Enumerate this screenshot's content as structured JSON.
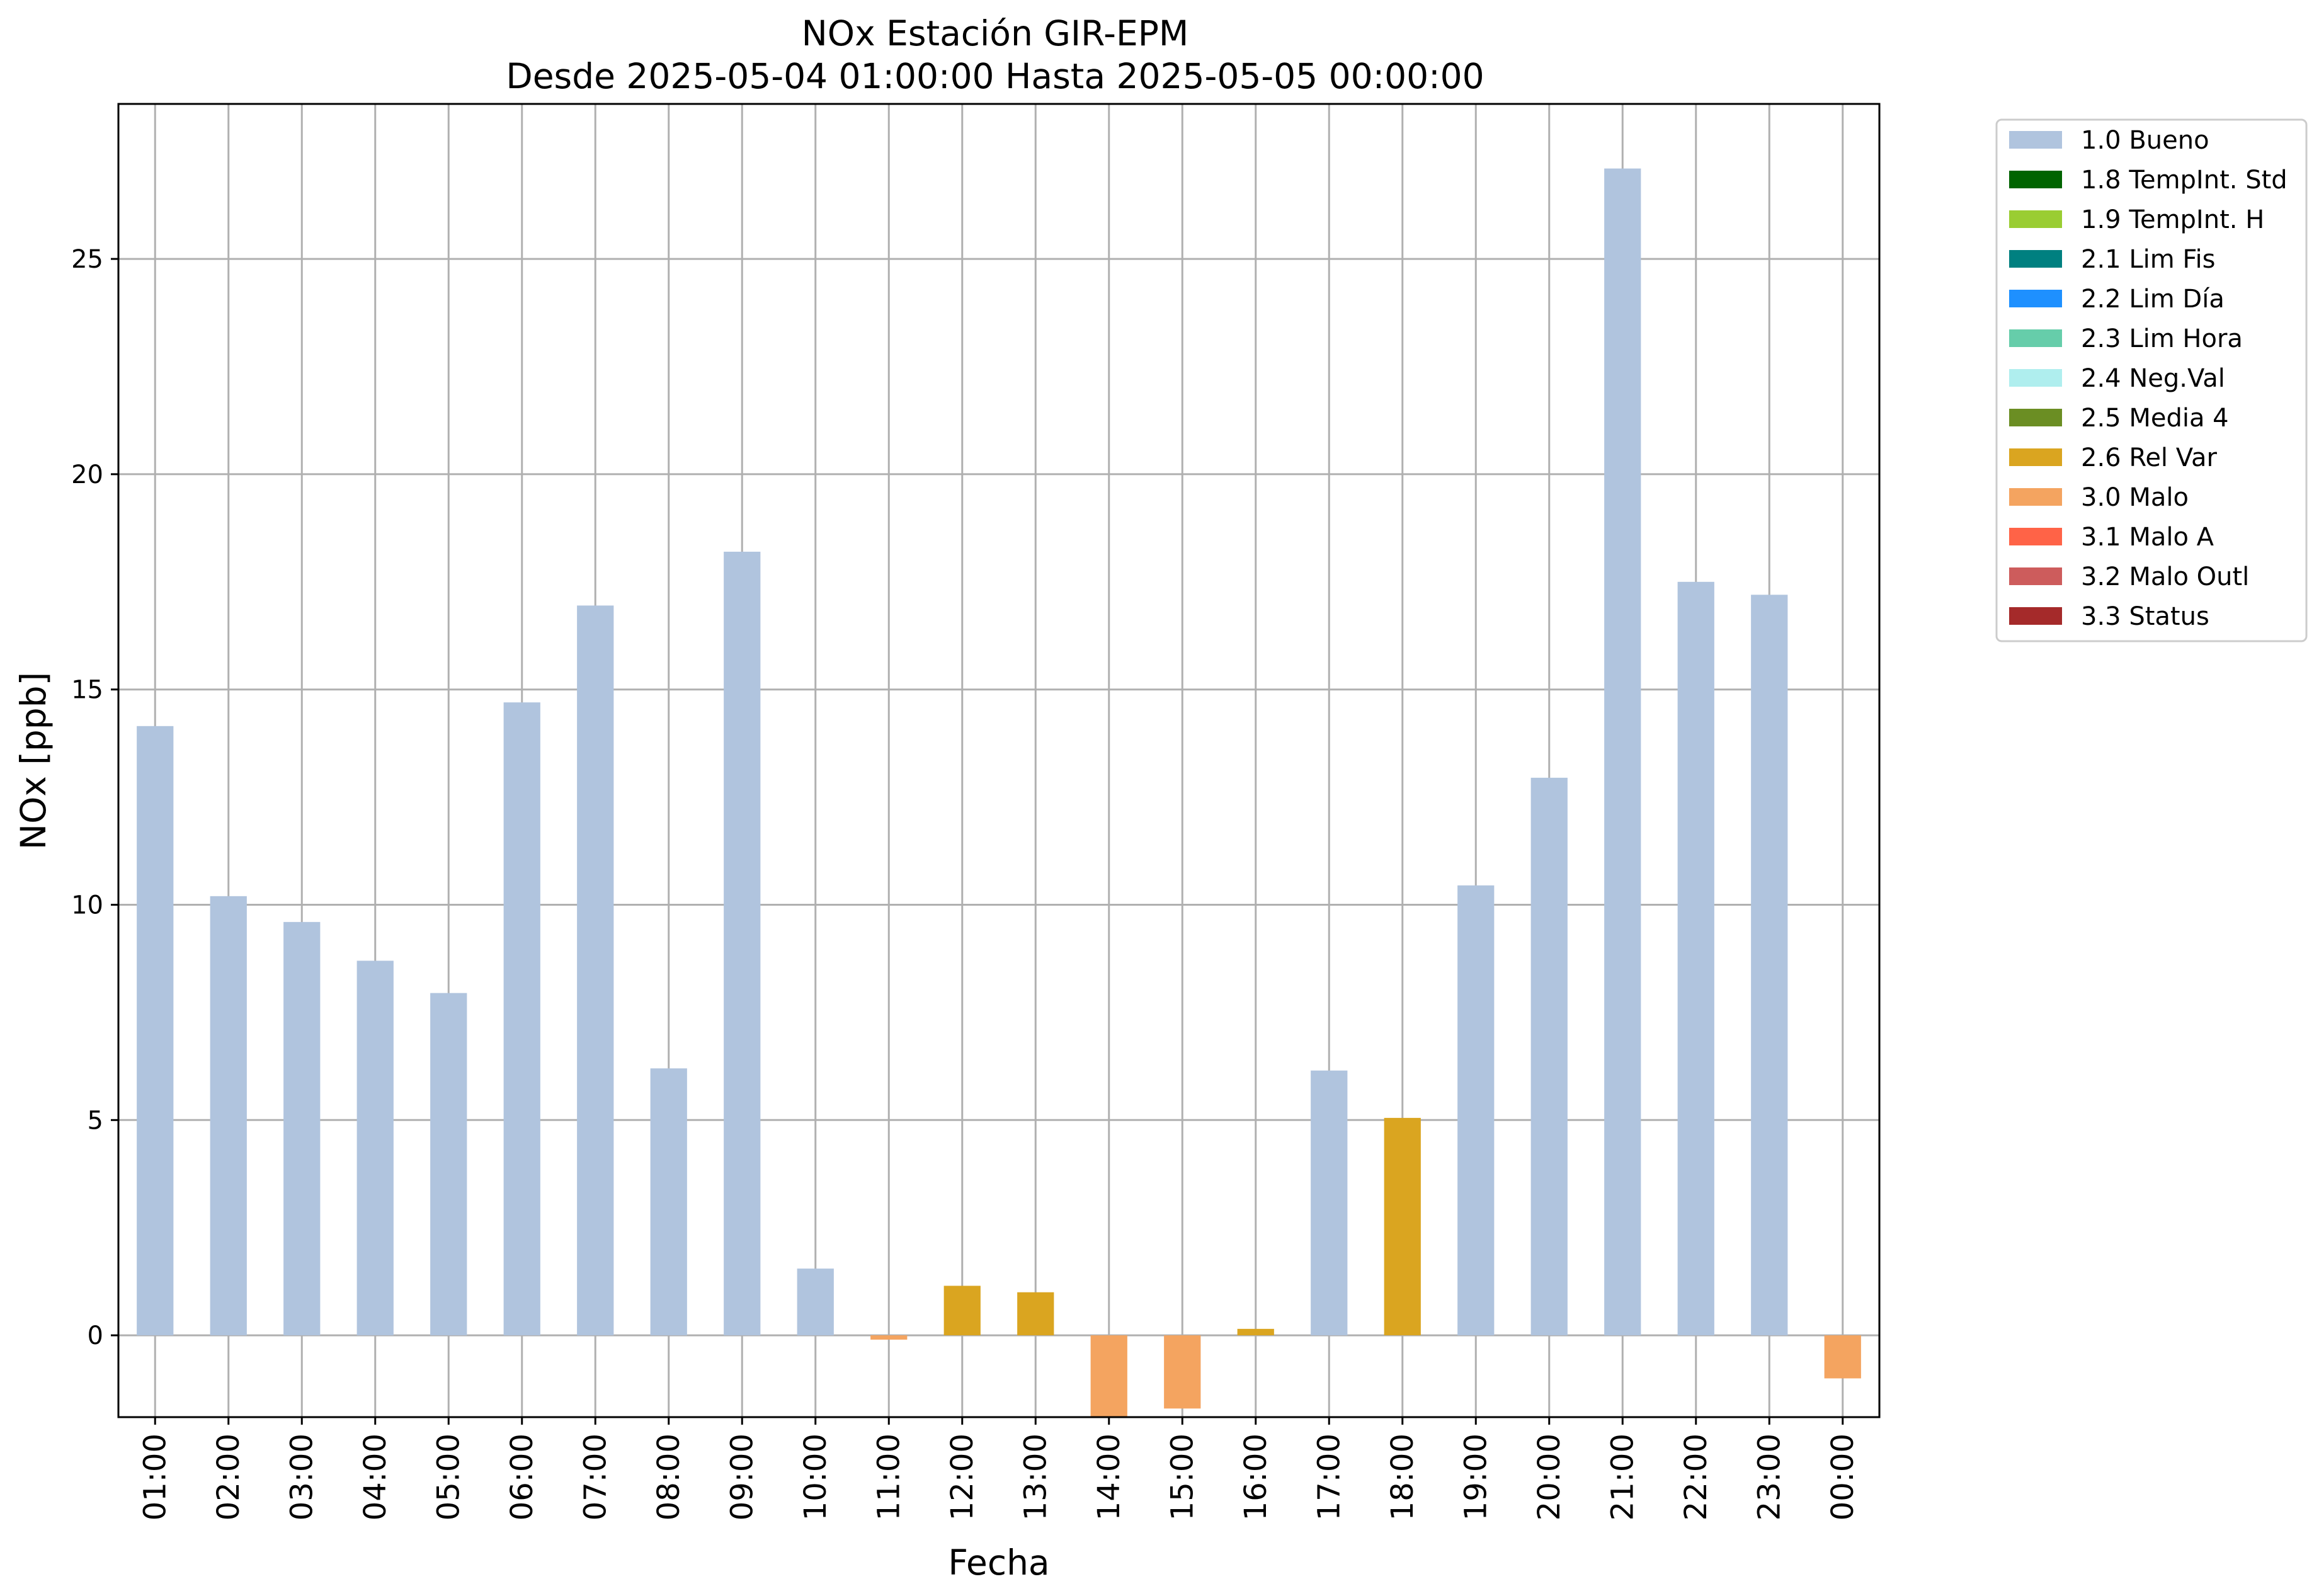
{
  "chart_data": {
    "type": "bar",
    "title": "NOx Estación GIR-EPM",
    "subtitle": "Desde 2025-05-04 01:00:00 Hasta 2025-05-05 00:00:00",
    "xlabel": "Fecha",
    "ylabel": "NOx [ppb]",
    "ylim": [
      -1.9,
      28.6
    ],
    "yticks": [
      0,
      5,
      10,
      15,
      20,
      25
    ],
    "grid": true,
    "legend_position": "outside-top-right",
    "categories": [
      "01:00",
      "02:00",
      "03:00",
      "04:00",
      "05:00",
      "06:00",
      "07:00",
      "08:00",
      "09:00",
      "10:00",
      "11:00",
      "12:00",
      "13:00",
      "14:00",
      "15:00",
      "16:00",
      "17:00",
      "18:00",
      "19:00",
      "20:00",
      "21:00",
      "22:00",
      "23:00",
      "00:00"
    ],
    "values": [
      14.15,
      10.2,
      9.6,
      8.7,
      7.95,
      14.7,
      16.95,
      6.2,
      18.2,
      1.55,
      -0.1,
      1.15,
      1.0,
      -1.9,
      -1.7,
      0.15,
      6.15,
      5.05,
      10.45,
      12.95,
      27.1,
      17.5,
      17.2,
      -1.0
    ],
    "flags": [
      "1.0 Bueno",
      "1.0 Bueno",
      "1.0 Bueno",
      "1.0 Bueno",
      "1.0 Bueno",
      "1.0 Bueno",
      "1.0 Bueno",
      "1.0 Bueno",
      "1.0 Bueno",
      "1.0 Bueno",
      "3.0 Malo",
      "2.6 Rel Var",
      "2.6 Rel Var",
      "3.0 Malo",
      "3.0 Malo",
      "2.6 Rel Var",
      "1.0 Bueno",
      "2.6 Rel Var",
      "1.0 Bueno",
      "1.0 Bueno",
      "1.0 Bueno",
      "1.0 Bueno",
      "1.0 Bueno",
      "3.0 Malo"
    ],
    "legend": [
      {
        "name": "1.0 Bueno",
        "color": "#b0c4de"
      },
      {
        "name": "1.8 TempInt. Std",
        "color": "#006400"
      },
      {
        "name": "1.9 TempInt. H",
        "color": "#9acd32"
      },
      {
        "name": "2.1 Lim Fis",
        "color": "#008080"
      },
      {
        "name": "2.2 Lim Día",
        "color": "#1e90ff"
      },
      {
        "name": "2.3 Lim Hora",
        "color": "#66cdaa"
      },
      {
        "name": "2.4 Neg.Val",
        "color": "#afeeee"
      },
      {
        "name": "2.5 Media 4",
        "color": "#6b8e23"
      },
      {
        "name": "2.6 Rel Var",
        "color": "#daa520"
      },
      {
        "name": "3.0 Malo",
        "color": "#f4a460"
      },
      {
        "name": "3.1 Malo A",
        "color": "#ff6347"
      },
      {
        "name": "3.2 Malo Outl",
        "color": "#cd5c5c"
      },
      {
        "name": "3.3 Status",
        "color": "#a52a2a"
      }
    ]
  }
}
